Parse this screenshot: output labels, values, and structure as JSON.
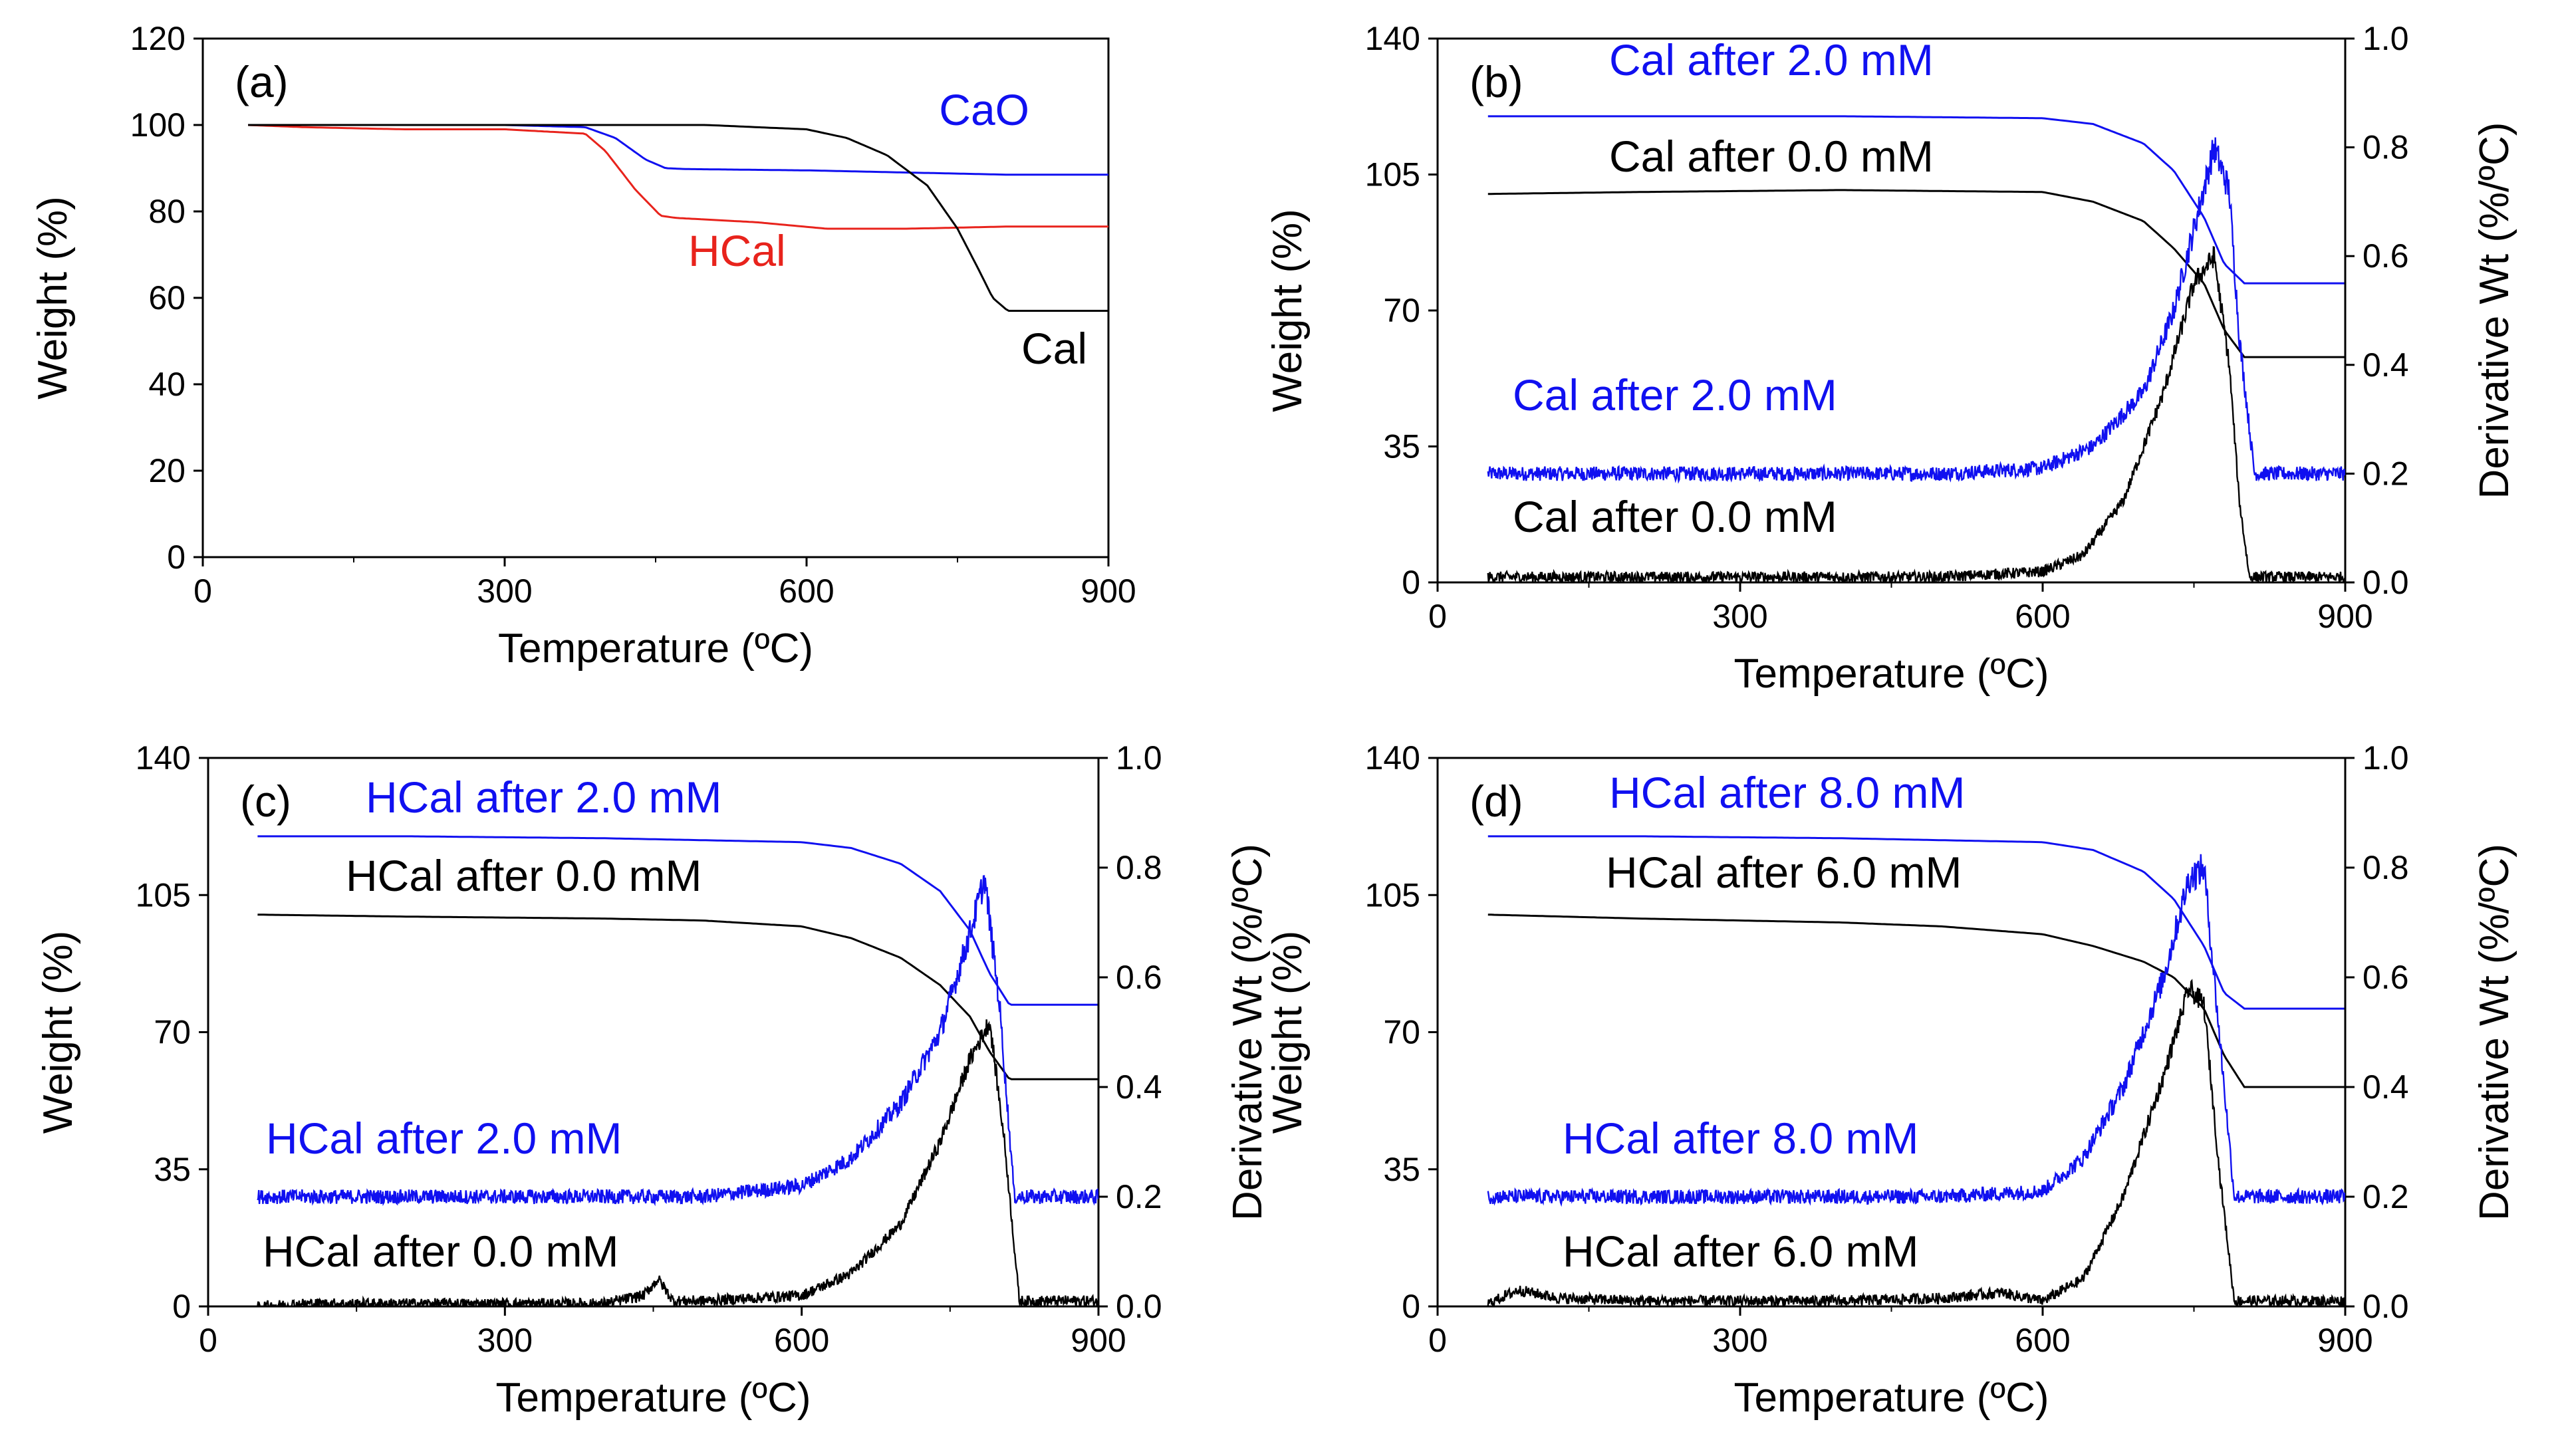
{
  "colors": {
    "black": "#000000",
    "blue": "#1010f0",
    "red": "#e8231c"
  },
  "chart_data": [
    {
      "panel": "(a)",
      "type": "line",
      "xlabel": "Temperature (ºC)",
      "ylabel": "Weight (%)",
      "xlim": [
        0,
        900
      ],
      "ylim": [
        0,
        120
      ],
      "xticks": [
        "0",
        "300",
        "600",
        "900"
      ],
      "yticks": [
        "0",
        "20",
        "40",
        "60",
        "80",
        "100",
        "120"
      ],
      "grid": false,
      "series": [
        {
          "name": "CaO",
          "color": "blue",
          "x": [
            45,
            100,
            200,
            300,
            380,
            410,
            440,
            460,
            480,
            600,
            700,
            800,
            900
          ],
          "y": [
            100,
            100,
            100,
            100,
            99.5,
            97,
            92,
            90,
            89.8,
            89.5,
            89,
            88.5,
            88.5
          ]
        },
        {
          "name": "HCal",
          "color": "red",
          "x": [
            45,
            100,
            200,
            300,
            380,
            400,
            430,
            455,
            470,
            550,
            620,
            700,
            800,
            900
          ],
          "y": [
            100,
            99.5,
            99,
            99,
            98,
            94,
            85,
            79,
            78.5,
            77.5,
            76,
            76,
            76.5,
            76.5
          ]
        },
        {
          "name": "Cal",
          "color": "black",
          "x": [
            45,
            100,
            200,
            300,
            400,
            500,
            600,
            640,
            680,
            720,
            750,
            770,
            785,
            800,
            900
          ],
          "y": [
            100,
            100,
            100,
            100,
            100,
            100,
            99,
            97,
            93,
            86,
            76,
            67,
            60,
            57,
            57
          ]
        }
      ],
      "annotations": [
        {
          "text": "CaO",
          "color": "blue"
        },
        {
          "text": "HCal",
          "color": "red"
        },
        {
          "text": "Cal",
          "color": "black"
        }
      ]
    },
    {
      "panel": "(b)",
      "type": "line",
      "xlabel": "Temperature (ºC)",
      "ylabel": "Weight (%)",
      "y2label": "Derivative Wt (%/ºC)",
      "xlim": [
        0,
        900
      ],
      "ylim": [
        0,
        140
      ],
      "y2lim": [
        0,
        1.0
      ],
      "xticks": [
        "0",
        "300",
        "600",
        "900"
      ],
      "yticks": [
        "0",
        "35",
        "70",
        "105",
        "140"
      ],
      "y2ticks": [
        "0.0",
        "0.2",
        "0.4",
        "0.6",
        "0.8",
        "1.0"
      ],
      "grid": false,
      "series": [
        {
          "name": "Cal after 2.0 mM",
          "axis": "weight",
          "color": "blue",
          "x": [
            50,
            200,
            400,
            600,
            650,
            700,
            730,
            760,
            780,
            800,
            900
          ],
          "y": [
            120,
            120,
            120,
            119.5,
            118,
            113,
            106,
            94,
            82,
            77,
            77
          ]
        },
        {
          "name": "Cal after 0.0 mM",
          "axis": "weight",
          "color": "black",
          "x": [
            50,
            200,
            400,
            600,
            650,
            700,
            730,
            760,
            780,
            800,
            900
          ],
          "y": [
            100,
            100.5,
            101,
            100.5,
            98,
            93,
            86,
            77,
            65,
            58,
            58
          ]
        },
        {
          "name": "Cal after 2.0 mM",
          "axis": "derivative",
          "color": "blue",
          "noise": 0.012,
          "x": [
            50,
            70,
            100,
            200,
            300,
            400,
            500,
            600,
            650,
            700,
            730,
            750,
            770,
            785,
            795,
            810,
            900
          ],
          "y": [
            0.2,
            0.2,
            0.2,
            0.2,
            0.2,
            0.2,
            0.2,
            0.21,
            0.25,
            0.35,
            0.5,
            0.65,
            0.8,
            0.72,
            0.45,
            0.2,
            0.2
          ]
        },
        {
          "name": "Cal after 0.0 mM",
          "axis": "derivative",
          "color": "black",
          "noise": 0.01,
          "x": [
            50,
            100,
            200,
            300,
            400,
            500,
            600,
            640,
            680,
            720,
            750,
            770,
            785,
            795,
            805,
            900
          ],
          "y": [
            0.01,
            0.01,
            0.01,
            0.01,
            0.01,
            0.01,
            0.02,
            0.05,
            0.15,
            0.35,
            0.55,
            0.6,
            0.4,
            0.15,
            0.01,
            0.01
          ]
        }
      ],
      "annotations": [
        {
          "text": "Cal after 2.0 mM",
          "color": "blue"
        },
        {
          "text": "Cal after 0.0 mM",
          "color": "black"
        },
        {
          "text": "Cal after 2.0 mM",
          "color": "blue"
        },
        {
          "text": "Cal after 0.0 mM",
          "color": "black"
        }
      ]
    },
    {
      "panel": "(c)",
      "type": "line",
      "xlabel": "Temperature (ºC)",
      "ylabel": "Weight (%)",
      "y2label": "Derivative Wt (%/ºC)",
      "xlim": [
        0,
        900
      ],
      "ylim": [
        0,
        140
      ],
      "y2lim": [
        0,
        1.0
      ],
      "xticks": [
        "0",
        "300",
        "600",
        "900"
      ],
      "yticks": [
        "0",
        "35",
        "70",
        "105",
        "140"
      ],
      "y2ticks": [
        "0.0",
        "0.2",
        "0.4",
        "0.6",
        "0.8",
        "1.0"
      ],
      "grid": false,
      "series": [
        {
          "name": "HCal after 2.0 mM",
          "axis": "weight",
          "color": "blue",
          "x": [
            50,
            200,
            400,
            600,
            650,
            700,
            740,
            770,
            790,
            810,
            900
          ],
          "y": [
            120,
            120,
            119.5,
            118.5,
            117,
            113,
            106,
            96,
            85,
            77,
            77
          ]
        },
        {
          "name": "HCal after 0.0 mM",
          "axis": "weight",
          "color": "black",
          "x": [
            50,
            200,
            400,
            500,
            600,
            650,
            700,
            740,
            770,
            790,
            810,
            900
          ],
          "y": [
            100,
            99.5,
            99,
            98.5,
            97,
            94,
            89,
            82,
            74,
            65,
            58,
            58
          ]
        },
        {
          "name": "HCal after 2.0 mM",
          "axis": "derivative",
          "color": "blue",
          "noise": 0.012,
          "x": [
            50,
            70,
            100,
            200,
            300,
            400,
            500,
            600,
            650,
            700,
            740,
            770,
            785,
            800,
            815,
            900
          ],
          "y": [
            0.2,
            0.2,
            0.2,
            0.2,
            0.2,
            0.2,
            0.2,
            0.22,
            0.27,
            0.37,
            0.5,
            0.68,
            0.78,
            0.55,
            0.2,
            0.2
          ]
        },
        {
          "name": "HCal after 0.0 mM",
          "axis": "derivative",
          "color": "black",
          "noise": 0.01,
          "x": [
            50,
            100,
            200,
            300,
            400,
            440,
            455,
            470,
            500,
            600,
            650,
            700,
            740,
            770,
            790,
            805,
            820,
            900
          ],
          "y": [
            0.0,
            0.005,
            0.005,
            0.005,
            0.005,
            0.02,
            0.05,
            0.01,
            0.01,
            0.02,
            0.06,
            0.15,
            0.3,
            0.45,
            0.52,
            0.3,
            0.01,
            0.01
          ]
        }
      ],
      "annotations": [
        {
          "text": "HCal after 2.0 mM",
          "color": "blue"
        },
        {
          "text": "HCal after 0.0 mM",
          "color": "black"
        },
        {
          "text": "HCal after 2.0 mM",
          "color": "blue"
        },
        {
          "text": "HCal after 0.0 mM",
          "color": "black"
        }
      ]
    },
    {
      "panel": "(d)",
      "type": "line",
      "xlabel": "Temperature (ºC)",
      "ylabel": "Weight (%)",
      "y2label": "Derivative Wt (%/ºC)",
      "xlim": [
        0,
        900
      ],
      "ylim": [
        0,
        140
      ],
      "y2lim": [
        0,
        1.0
      ],
      "xticks": [
        "0",
        "300",
        "600",
        "900"
      ],
      "yticks": [
        "0",
        "35",
        "70",
        "105",
        "140"
      ],
      "y2ticks": [
        "0.0",
        "0.2",
        "0.4",
        "0.6",
        "0.8",
        "1.0"
      ],
      "grid": false,
      "series": [
        {
          "name": "HCal after 8.0 mM",
          "axis": "weight",
          "color": "blue",
          "x": [
            50,
            200,
            400,
            600,
            650,
            700,
            730,
            760,
            780,
            800,
            900
          ],
          "y": [
            120,
            120,
            119.5,
            118.5,
            116.5,
            111,
            104,
            92,
            80,
            76,
            76
          ]
        },
        {
          "name": "HCal after 6.0 mM",
          "axis": "weight",
          "color": "black",
          "x": [
            50,
            200,
            400,
            500,
            600,
            650,
            700,
            730,
            760,
            780,
            800,
            900
          ],
          "y": [
            100,
            99,
            98,
            97,
            95,
            92,
            88,
            84,
            76,
            64,
            56,
            56
          ]
        },
        {
          "name": "HCal after 8.0 mM",
          "axis": "derivative",
          "color": "blue",
          "noise": 0.012,
          "x": [
            50,
            70,
            100,
            200,
            300,
            400,
            500,
            600,
            640,
            680,
            720,
            745,
            760,
            775,
            790,
            900
          ],
          "y": [
            0.2,
            0.2,
            0.2,
            0.2,
            0.2,
            0.2,
            0.2,
            0.21,
            0.27,
            0.4,
            0.6,
            0.78,
            0.8,
            0.5,
            0.2,
            0.2
          ]
        },
        {
          "name": "HCal after 6.0 mM",
          "axis": "derivative",
          "color": "black",
          "noise": 0.01,
          "x": [
            50,
            80,
            120,
            200,
            300,
            400,
            500,
            560,
            600,
            640,
            680,
            720,
            745,
            760,
            775,
            790,
            900
          ],
          "y": [
            0.005,
            0.03,
            0.015,
            0.01,
            0.01,
            0.01,
            0.015,
            0.025,
            0.01,
            0.05,
            0.2,
            0.42,
            0.58,
            0.55,
            0.25,
            0.01,
            0.01
          ]
        }
      ],
      "annotations": [
        {
          "text": "HCal after 8.0 mM",
          "color": "blue"
        },
        {
          "text": "HCal after 6.0 mM",
          "color": "black"
        },
        {
          "text": "HCal after 8.0 mM",
          "color": "blue"
        },
        {
          "text": "HCal after 6.0 mM",
          "color": "black"
        }
      ]
    }
  ]
}
